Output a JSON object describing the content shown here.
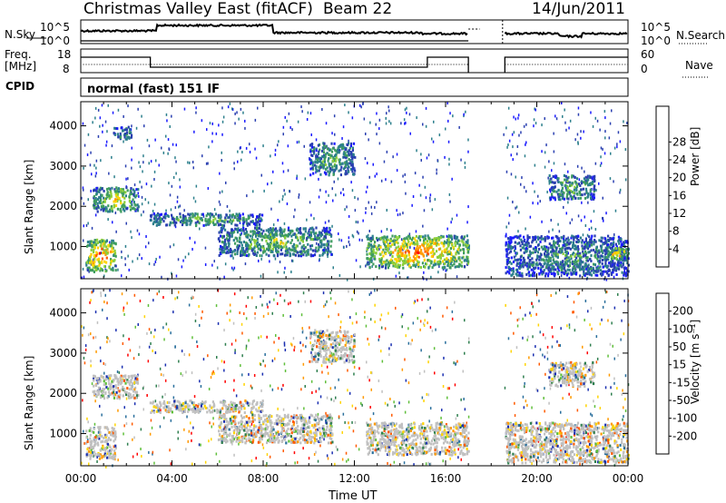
{
  "header": {
    "station": "Christmas Valley East (fitACF)",
    "beam": "Beam 22",
    "date": "14/Jun/2011"
  },
  "noise_panel": {
    "left_label": "N.Sky",
    "right_label": "N.Search",
    "ticks_left": [
      "10^5",
      "10^0"
    ],
    "ticks_right": [
      "10^5",
      "10^0"
    ]
  },
  "freq_panel": {
    "left_label_line1": "Freq.",
    "left_label_line2": "[MHz]",
    "right_label": "Nave",
    "ticks_left": [
      "18",
      "8"
    ],
    "ticks_right": [
      "60",
      "0"
    ]
  },
  "cpid": {
    "label": "CPID",
    "mode": "normal (fast) 151 IF"
  },
  "chart_data": [
    {
      "type": "heatmap",
      "panel": "power",
      "ylabel": "Slant Range [km]",
      "xlabel": "",
      "ylim": [
        200,
        4600
      ],
      "xlim_hours": [
        0,
        24
      ],
      "ytick_labels": [
        "1000",
        "2000",
        "3000",
        "4000"
      ],
      "colorbar": {
        "label": "Power [dB]",
        "ticks": [
          "4",
          "8",
          "12",
          "16",
          "20",
          "24",
          "28"
        ],
        "colors": [
          "#1a1aff",
          "#2a3fb0",
          "#2c7f8c",
          "#3f9d5f",
          "#8ccf3a",
          "#ffd400",
          "#ff9a00",
          "#ff5a00",
          "#ff0000"
        ]
      },
      "data_gap_hours": [
        17.0,
        18.5
      ],
      "echo_regions": [
        {
          "t0": 0.2,
          "t1": 1.5,
          "r0": 400,
          "r1": 1200,
          "level": 0.85
        },
        {
          "t0": 0.5,
          "t1": 2.5,
          "r0": 1900,
          "r1": 2500,
          "level": 0.6
        },
        {
          "t0": 1.4,
          "t1": 2.2,
          "r0": 3700,
          "r1": 4000,
          "level": 0.4
        },
        {
          "t0": 3.0,
          "t1": 8.0,
          "r0": 1550,
          "r1": 1850,
          "level": 0.45
        },
        {
          "t0": 6.0,
          "t1": 11.0,
          "r0": 800,
          "r1": 1500,
          "level": 0.5
        },
        {
          "t0": 10.0,
          "t1": 12.0,
          "r0": 2800,
          "r1": 3600,
          "level": 0.45
        },
        {
          "t0": 12.5,
          "t1": 17.0,
          "r0": 500,
          "r1": 1300,
          "level": 0.8
        },
        {
          "t0": 18.6,
          "t1": 24.0,
          "r0": 300,
          "r1": 1300,
          "level": 0.35
        },
        {
          "t0": 20.5,
          "t1": 22.5,
          "r0": 2200,
          "r1": 2800,
          "level": 0.45
        },
        {
          "t0": 23.0,
          "t1": 24.0,
          "r0": 700,
          "r1": 1000,
          "level": 0.7
        }
      ]
    },
    {
      "type": "heatmap",
      "panel": "velocity",
      "ylabel": "Slant Range [km]",
      "xlabel": "Time UT",
      "ylim": [
        200,
        4600
      ],
      "xlim_hours": [
        0,
        24
      ],
      "xtick_labels": [
        "00:00",
        "04:00",
        "08:00",
        "12:00",
        "16:00",
        "20:00",
        "00:00"
      ],
      "ytick_labels": [
        "1000",
        "2000",
        "3000",
        "4000"
      ],
      "colorbar": {
        "label": "Velocity [m s⁻¹]",
        "ticks": [
          "200",
          "100",
          "50",
          "15",
          "-15",
          "-50",
          "-100",
          "-200"
        ],
        "colors": [
          "#1a2fb0",
          "#2a6f9c",
          "#2f7f4f",
          "#5fbf3a",
          "#c0c0c0",
          "#ffd400",
          "#ff9a00",
          "#ff5a00",
          "#ff0000"
        ]
      },
      "data_gap_hours": [
        17.0,
        18.5
      ],
      "echo_regions": [
        {
          "t0": 0.2,
          "t1": 1.5,
          "r0": 400,
          "r1": 1200,
          "level": 0.5
        },
        {
          "t0": 0.5,
          "t1": 2.5,
          "r0": 1900,
          "r1": 2500,
          "level": 0.5
        },
        {
          "t0": 3.0,
          "t1": 8.0,
          "r0": 1550,
          "r1": 1850,
          "level": 0.5
        },
        {
          "t0": 6.0,
          "t1": 11.0,
          "r0": 800,
          "r1": 1500,
          "level": 0.5
        },
        {
          "t0": 10.0,
          "t1": 12.0,
          "r0": 2800,
          "r1": 3600,
          "level": 0.6
        },
        {
          "t0": 12.5,
          "t1": 17.0,
          "r0": 500,
          "r1": 1300,
          "level": 0.5
        },
        {
          "t0": 18.6,
          "t1": 24.0,
          "r0": 300,
          "r1": 1300,
          "level": 0.5
        },
        {
          "t0": 20.5,
          "t1": 22.5,
          "r0": 2200,
          "r1": 2800,
          "level": 0.5
        }
      ]
    }
  ]
}
